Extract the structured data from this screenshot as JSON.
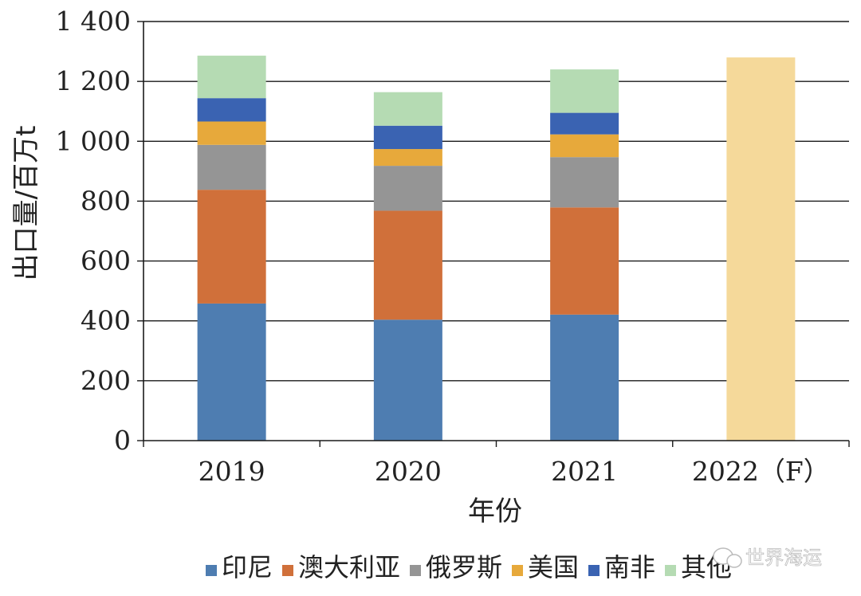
{
  "chart_data": {
    "type": "bar",
    "stacked": true,
    "categories": [
      "2019",
      "2020",
      "2021",
      "2022（F）"
    ],
    "ylabel": "出口量/百万t",
    "xlabel": "年份",
    "ylim": [
      0,
      1400
    ],
    "yticks": [
      0,
      200,
      400,
      600,
      800,
      1000,
      1200,
      1400
    ],
    "ytick_labels": [
      "0",
      "200",
      "400",
      "600",
      "800",
      "1 000",
      "1 200",
      "1 400"
    ],
    "grid": true,
    "legend_position": "bottom",
    "series": [
      {
        "name": "印尼",
        "color": "#4e7db1",
        "values": [
          458,
          404,
          421,
          null
        ]
      },
      {
        "name": "澳大利亚",
        "color": "#d0703a",
        "values": [
          380,
          364,
          358,
          null
        ]
      },
      {
        "name": "俄罗斯",
        "color": "#959595",
        "values": [
          150,
          150,
          168,
          null
        ]
      },
      {
        "name": "美国",
        "color": "#e7a93b",
        "values": [
          78,
          56,
          76,
          null
        ]
      },
      {
        "name": "南非",
        "color": "#3a63b2",
        "values": [
          78,
          78,
          72,
          null
        ]
      },
      {
        "name": "其他",
        "color": "#b5dbb3",
        "values": [
          142,
          112,
          145,
          null
        ]
      }
    ],
    "forecast": {
      "category": "2022（F）",
      "value": 1280,
      "color": "#f5d99a"
    }
  },
  "watermark": {
    "text": "世界海运"
  }
}
